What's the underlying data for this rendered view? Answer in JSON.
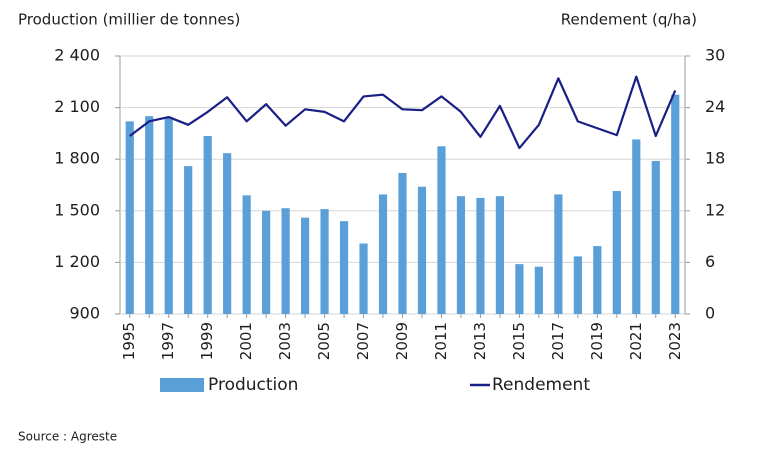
{
  "chart_data": {
    "type": "bar-line",
    "y_label": "Production (millier de tonnes)",
    "y2_label": "Rendement (q/ha)",
    "source": "Source : Agreste",
    "categories": [
      "1995",
      null,
      "1997",
      null,
      "1999",
      null,
      "2001",
      null,
      "2003",
      null,
      "2005",
      null,
      "2007",
      null,
      "2009",
      null,
      "2011",
      null,
      "2013",
      null,
      "2015",
      null,
      "2017",
      null,
      "2019",
      null,
      "2021",
      null,
      "2023"
    ],
    "series": [
      {
        "name": "Production",
        "type": "bar",
        "color": "#5b9fd9",
        "values": [
          2020,
          2050,
          2040,
          1760,
          1935,
          1835,
          1590,
          1500,
          1515,
          1460,
          1510,
          1440,
          1310,
          1595,
          1720,
          1640,
          1875,
          1585,
          1575,
          1585,
          1190,
          1175,
          1595,
          1235,
          1295,
          1615,
          1915,
          1790,
          2175
        ]
      },
      {
        "name": "Rendement",
        "type": "line",
        "axis": "y2",
        "color": "#1a1f86",
        "values": [
          20.7,
          22.4,
          22.9,
          22.0,
          23.5,
          25.2,
          22.4,
          24.4,
          21.9,
          23.8,
          23.5,
          22.4,
          25.3,
          25.5,
          23.8,
          23.7,
          25.3,
          23.5,
          20.6,
          24.2,
          19.3,
          22.0,
          27.4,
          22.4,
          21.6,
          20.8,
          27.6,
          20.7,
          26.0
        ]
      }
    ],
    "ylim": [
      900,
      2400
    ],
    "yticks": [
      900,
      {
        "value": 1200,
        "label": "1 200"
      },
      {
        "value": 1500,
        "label": "1 500"
      },
      {
        "value": 1800,
        "label": "1 800"
      },
      {
        "value": 2100,
        "label": "2 100"
      },
      {
        "value": 2400,
        "label": "2 400"
      }
    ],
    "y2lim": [
      0,
      30
    ],
    "y2ticks": [
      0,
      6,
      12,
      18,
      24,
      30
    ],
    "grid": true
  }
}
